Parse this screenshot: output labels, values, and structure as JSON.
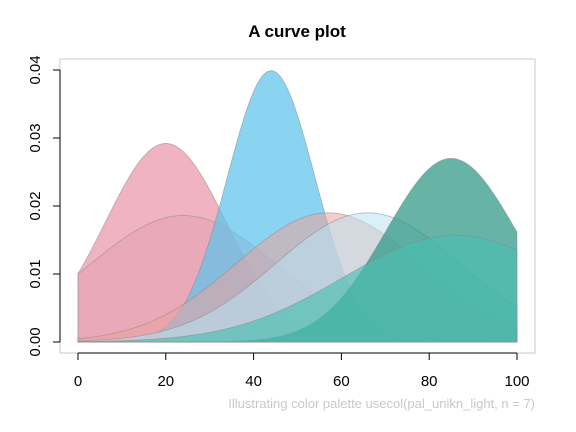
{
  "chart_data": {
    "type": "area",
    "title": "A curve plot",
    "caption": "Illustrating color palette usecol(pal_unikn_light, n = 7)",
    "xlabel": "",
    "ylabel": "",
    "xlim": [
      0,
      100
    ],
    "ylim": [
      0,
      0.04
    ],
    "x_ticks": [
      0,
      20,
      40,
      60,
      80,
      100
    ],
    "y_ticks": [
      0.0,
      0.01,
      0.02,
      0.03,
      0.04
    ],
    "x_tick_labels": [
      "0",
      "20",
      "40",
      "60",
      "80",
      "100"
    ],
    "y_tick_labels": [
      "0.00",
      "0.01",
      "0.02",
      "0.03",
      "0.04"
    ],
    "grid": false,
    "legend": "none",
    "curve_kind": "normal density, filled",
    "series": [
      {
        "color": "#ea93a8",
        "opacity": 0.7,
        "mean": 20,
        "sd": 13.7,
        "peak": 0.0292
      },
      {
        "color": "#e4a0b0",
        "opacity": 0.55,
        "mean": 24,
        "sd": 21.5,
        "peak": 0.0186
      },
      {
        "color": "#5ec3eb",
        "opacity": 0.72,
        "mean": 44,
        "sd": 10,
        "peak": 0.0399
      },
      {
        "color": "#eba39e",
        "opacity": 0.55,
        "mean": 57,
        "sd": 21,
        "peak": 0.019
      },
      {
        "color": "#b9e3f3",
        "opacity": 0.55,
        "mean": 66,
        "sd": 21,
        "peak": 0.019
      },
      {
        "color": "#2d9583",
        "opacity": 0.72,
        "mean": 85,
        "sd": 14.8,
        "peak": 0.027
      },
      {
        "color": "#49bfb2",
        "opacity": 0.65,
        "mean": 86,
        "sd": 25.5,
        "peak": 0.0157
      }
    ]
  }
}
